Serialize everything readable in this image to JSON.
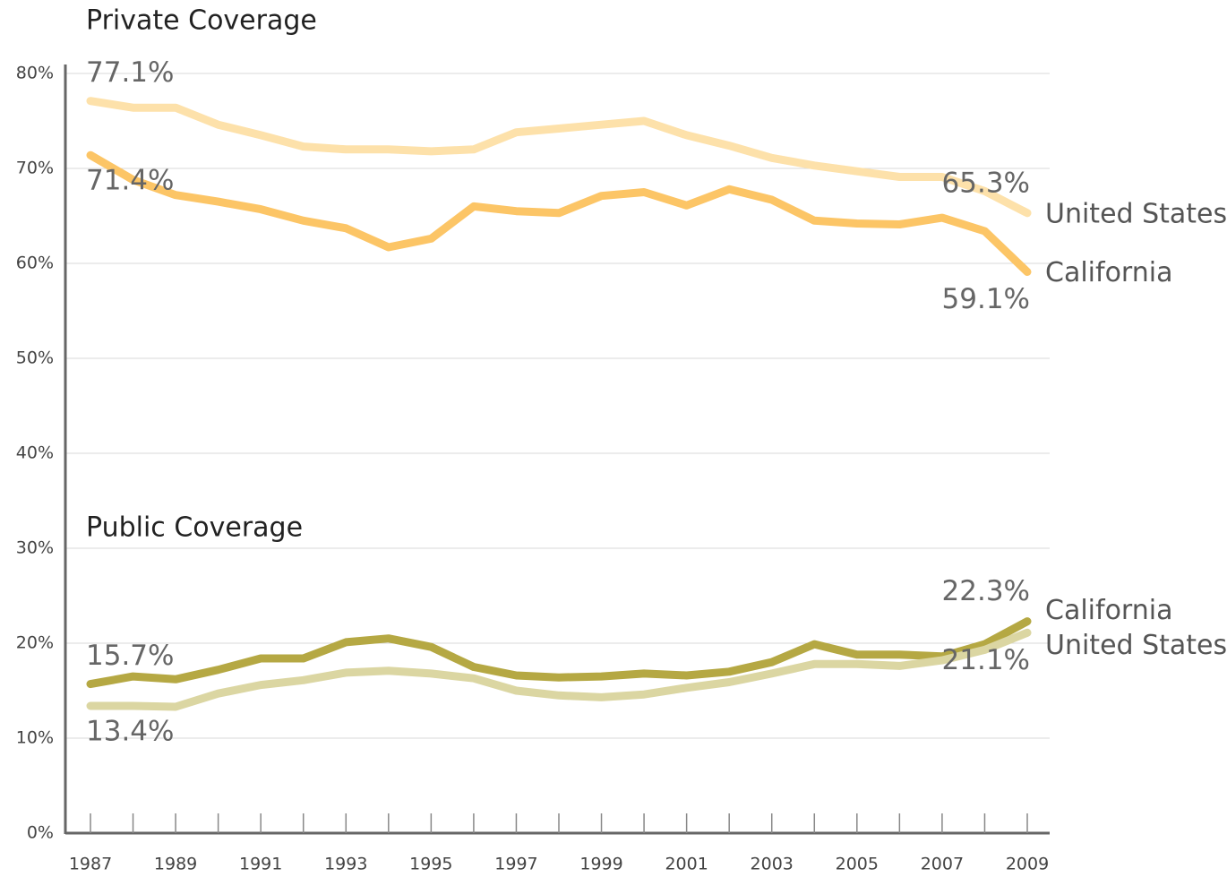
{
  "chart_data": {
    "type": "line",
    "titles": [
      "Private Coverage",
      "Public Coverage"
    ],
    "x": [
      1987,
      1988,
      1989,
      1990,
      1991,
      1992,
      1993,
      1994,
      1995,
      1996,
      1997,
      1998,
      1999,
      2000,
      2001,
      2002,
      2003,
      2004,
      2005,
      2006,
      2007,
      2008,
      2009
    ],
    "xlim": [
      1987,
      2009
    ],
    "xticks": [
      1987,
      1989,
      1991,
      1993,
      1995,
      1997,
      1999,
      2001,
      2003,
      2005,
      2007,
      2009
    ],
    "ylim": [
      0,
      80
    ],
    "yticks": [
      {
        "value": 0,
        "label": "0%"
      },
      {
        "value": 10,
        "label": "10%"
      },
      {
        "value": 20,
        "label": "20%"
      },
      {
        "value": 30,
        "label": "30%"
      },
      {
        "value": 40,
        "label": "40%"
      },
      {
        "value": 50,
        "label": "50%"
      },
      {
        "value": 60,
        "label": "60%"
      },
      {
        "value": 70,
        "label": "70%"
      },
      {
        "value": 80,
        "label": "80%"
      }
    ],
    "grid": true,
    "series": [
      {
        "name": "United States",
        "color": "#fde1aa",
        "values": [
          77.1,
          76.4,
          76.4,
          74.6,
          73.5,
          72.3,
          72.0,
          72.0,
          71.8,
          72.0,
          73.8,
          74.2,
          74.6,
          75.0,
          73.5,
          72.4,
          71.1,
          70.3,
          69.7,
          69.1,
          69.1,
          67.6,
          65.3
        ],
        "value_labels": [
          "77.1%",
          null,
          null,
          null,
          null,
          null,
          null,
          null,
          null,
          null,
          null,
          null,
          null,
          null,
          null,
          null,
          null,
          null,
          null,
          null,
          null,
          null,
          "65.3%"
        ]
      },
      {
        "name": "California",
        "color": "#fcc566",
        "values": [
          71.4,
          68.8,
          67.2,
          66.5,
          65.7,
          64.5,
          63.7,
          61.7,
          62.6,
          66.0,
          65.5,
          65.3,
          67.1,
          67.5,
          66.1,
          67.8,
          66.7,
          64.5,
          64.2,
          64.1,
          64.8,
          63.4,
          59.1
        ],
        "value_labels": [
          "71.4%",
          null,
          null,
          null,
          null,
          null,
          null,
          null,
          null,
          null,
          null,
          null,
          null,
          null,
          null,
          null,
          null,
          null,
          null,
          null,
          null,
          null,
          "59.1%"
        ]
      },
      {
        "name": "California",
        "color": "#b5a843",
        "values": [
          15.7,
          16.5,
          16.2,
          17.2,
          18.4,
          18.4,
          20.1,
          20.5,
          19.6,
          17.5,
          16.6,
          16.4,
          16.5,
          16.8,
          16.6,
          17.0,
          18.0,
          19.9,
          18.8,
          18.8,
          18.6,
          19.9,
          22.3
        ],
        "value_labels": [
          "15.7%",
          null,
          null,
          null,
          null,
          null,
          null,
          null,
          null,
          null,
          null,
          null,
          null,
          null,
          null,
          null,
          null,
          null,
          null,
          null,
          null,
          null,
          "22.3%"
        ]
      },
      {
        "name": "United States",
        "color": "#dbd6a2",
        "values": [
          13.4,
          13.4,
          13.3,
          14.7,
          15.6,
          16.1,
          16.9,
          17.1,
          16.8,
          16.3,
          15.0,
          14.5,
          14.3,
          14.6,
          15.3,
          15.9,
          16.8,
          17.8,
          17.8,
          17.6,
          18.2,
          19.3,
          21.1
        ],
        "value_labels": [
          "13.4%",
          null,
          null,
          null,
          null,
          null,
          null,
          null,
          null,
          null,
          null,
          null,
          null,
          null,
          null,
          null,
          null,
          null,
          null,
          null,
          null,
          null,
          "21.1%"
        ]
      }
    ]
  }
}
